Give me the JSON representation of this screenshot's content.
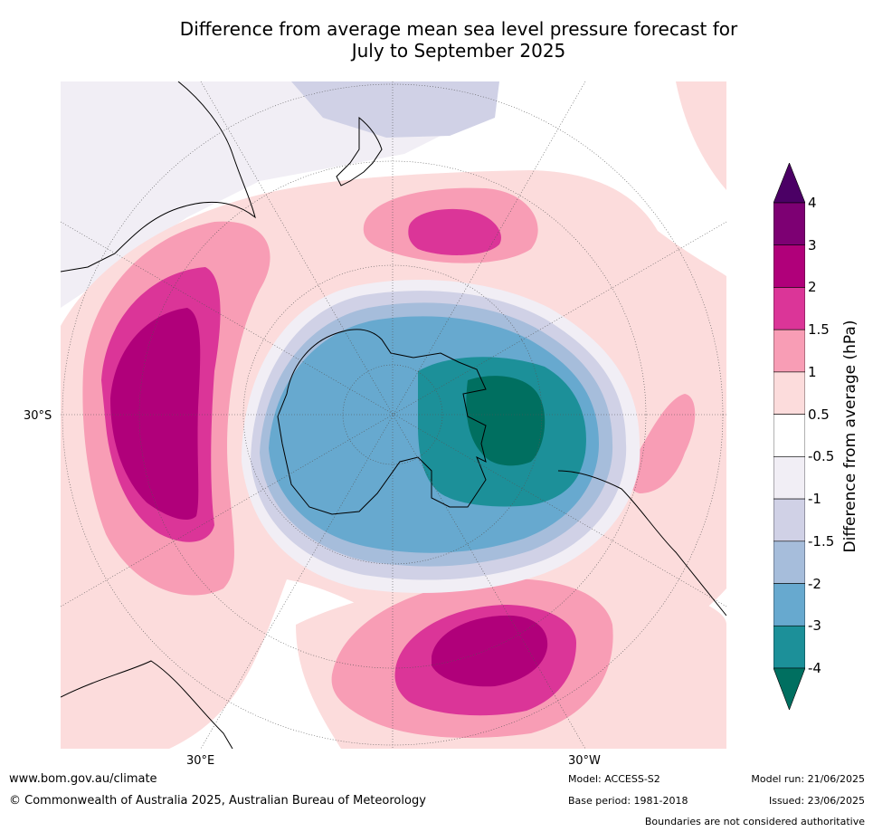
{
  "title_line1": "Difference from average mean sea level pressure forecast for",
  "title_line2": "July to September 2025",
  "labels": {
    "lat": "30°S",
    "lon_east": "30°E",
    "lon_west": "30°W"
  },
  "colorbar": {
    "title": "Difference from average (hPa)",
    "ticks": [
      "4",
      "3",
      "2",
      "1.5",
      "1",
      "0.5",
      "-0.5",
      "-1",
      "-1.5",
      "-2",
      "-3",
      "-4"
    ],
    "colors": [
      "#4b0065",
      "#7d0073",
      "#b0007a",
      "#db3598",
      "#f89db5",
      "#fcdcdc",
      "#ffffff",
      "#f1eef5",
      "#d0d1e6",
      "#a6bddb",
      "#67a9cf",
      "#1c9099",
      "#006f60"
    ]
  },
  "footer": {
    "website": "www.bom.gov.au/climate",
    "copyright": "© Commonwealth of Australia 2025, Australian Bureau of Meteorology",
    "model": "Model: ACCESS-S2",
    "base_period": "Base period: 1981-2018",
    "model_run": "Model run: 21/06/2025",
    "issued": "Issued: 23/06/2025",
    "disclaimer": "Boundaries are not considered authoritative"
  }
}
